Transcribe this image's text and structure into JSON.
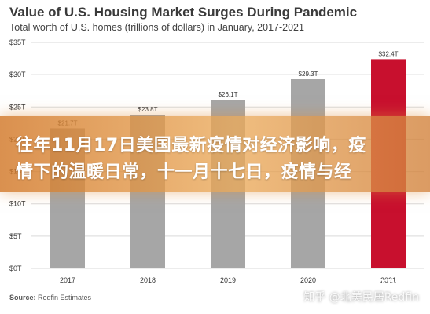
{
  "chart_data": {
    "type": "bar",
    "title": "Value of U.S. Housing Market Surges During Pandemic",
    "subtitle": "Total worth of U.S. homes (trillions of dollars) in January, 2017-2021",
    "categories": [
      "2017",
      "2018",
      "2019",
      "2020",
      "2021"
    ],
    "values": [
      21.7,
      23.8,
      26.1,
      29.3,
      32.4
    ],
    "value_labels": [
      "$21.7T",
      "$23.8T",
      "$26.1T",
      "$29.3T",
      "$32.4T"
    ],
    "yticks": [
      "$0T",
      "$5T",
      "$10T",
      "$15T",
      "$20T",
      "$25T",
      "$30T",
      "$35T"
    ],
    "ylim": [
      0,
      35
    ],
    "grid": true,
    "colors": {
      "default_bar": "#a6a6a6",
      "highlight_bar": "#c8102e",
      "grid": "#d9d9d9"
    },
    "highlight_category": "2021"
  },
  "source": {
    "label": "Source:",
    "text": "Redfin Estimates"
  },
  "logo": {
    "text": "REDFIN"
  },
  "banner": {
    "line1": "往年11月17日美国最新疫情对经济影响，疫",
    "line2": "情下的温暖日常，十一月十七日，疫情与经"
  },
  "watermark": {
    "text": "知乎 @北美民居Redfin"
  }
}
